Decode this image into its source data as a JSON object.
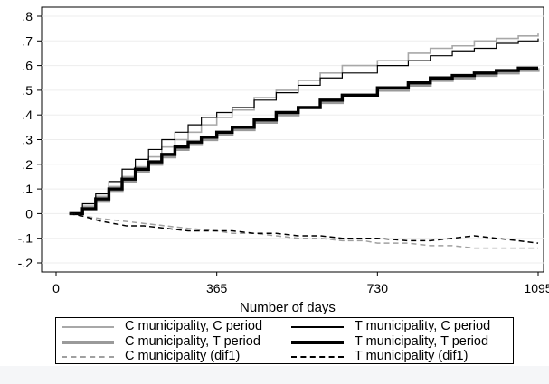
{
  "chart_data": {
    "type": "line",
    "title": "",
    "xlabel": "Number of days",
    "ylabel": "",
    "xlim": [
      0,
      1095
    ],
    "ylim": [
      -0.2,
      0.8
    ],
    "x_ticks": [
      0,
      365,
      730,
      1095
    ],
    "x_tick_labels": [
      "0",
      "365",
      "730",
      "1095"
    ],
    "y_ticks": [
      -0.2,
      -0.1,
      0,
      0.1,
      0.2,
      0.3,
      0.4,
      0.5,
      0.6,
      0.7,
      0.8
    ],
    "y_tick_labels": [
      "-.2",
      "-.1",
      "0",
      ".1",
      ".2",
      ".3",
      ".4",
      ".5",
      ".6",
      ".7",
      ".8"
    ],
    "grid": "horizontal",
    "legend_position": "bottom",
    "series": [
      {
        "name": "C municipality, C period",
        "color": "#a8a8a8",
        "width": 1.6,
        "dash": "",
        "step": true,
        "x": [
          30,
          60,
          90,
          120,
          150,
          180,
          210,
          240,
          270,
          300,
          330,
          365,
          400,
          450,
          500,
          550,
          600,
          650,
          730,
          800,
          850,
          900,
          950,
          1000,
          1050,
          1095
        ],
        "y": [
          0,
          0.03,
          0.07,
          0.11,
          0.15,
          0.19,
          0.23,
          0.27,
          0.3,
          0.33,
          0.36,
          0.39,
          0.42,
          0.47,
          0.5,
          0.54,
          0.57,
          0.6,
          0.62,
          0.65,
          0.67,
          0.68,
          0.7,
          0.71,
          0.72,
          0.73
        ]
      },
      {
        "name": "T municipality, C period",
        "color": "#000000",
        "width": 1.2,
        "dash": "",
        "step": true,
        "x": [
          30,
          60,
          90,
          120,
          150,
          180,
          210,
          240,
          270,
          300,
          330,
          365,
          400,
          450,
          500,
          550,
          600,
          650,
          730,
          800,
          850,
          900,
          950,
          1000,
          1050,
          1095
        ],
        "y": [
          0,
          0.04,
          0.08,
          0.13,
          0.18,
          0.22,
          0.26,
          0.3,
          0.33,
          0.36,
          0.39,
          0.41,
          0.43,
          0.46,
          0.49,
          0.52,
          0.55,
          0.57,
          0.6,
          0.62,
          0.64,
          0.66,
          0.67,
          0.69,
          0.7,
          0.71
        ]
      },
      {
        "name": "C municipality, T period",
        "color": "#9a9a9a",
        "width": 3.2,
        "dash": "",
        "step": true,
        "x": [
          30,
          60,
          90,
          120,
          150,
          180,
          210,
          240,
          270,
          300,
          330,
          365,
          400,
          450,
          500,
          550,
          600,
          650,
          730,
          800,
          850,
          900,
          950,
          1000,
          1050,
          1095
        ],
        "y": [
          0,
          0.02,
          0.05,
          0.09,
          0.13,
          0.17,
          0.2,
          0.23,
          0.26,
          0.28,
          0.3,
          0.32,
          0.34,
          0.37,
          0.4,
          0.43,
          0.45,
          0.48,
          0.5,
          0.52,
          0.54,
          0.55,
          0.56,
          0.57,
          0.58,
          0.59
        ]
      },
      {
        "name": "T municipality, T period",
        "color": "#000000",
        "width": 3.4,
        "dash": "",
        "step": true,
        "x": [
          30,
          60,
          90,
          120,
          150,
          180,
          210,
          240,
          270,
          300,
          330,
          365,
          400,
          450,
          500,
          550,
          600,
          650,
          730,
          800,
          850,
          900,
          950,
          1000,
          1050,
          1095
        ],
        "y": [
          0,
          0.02,
          0.06,
          0.1,
          0.14,
          0.18,
          0.21,
          0.24,
          0.27,
          0.29,
          0.31,
          0.33,
          0.35,
          0.38,
          0.41,
          0.43,
          0.46,
          0.48,
          0.51,
          0.53,
          0.55,
          0.56,
          0.57,
          0.58,
          0.59,
          0.59
        ]
      },
      {
        "name": "C municipality (dif1)",
        "color": "#a0a0a0",
        "width": 1.5,
        "dash": "6 4",
        "step": false,
        "x": [
          30,
          60,
          100,
          150,
          200,
          250,
          300,
          365,
          400,
          450,
          500,
          550,
          600,
          650,
          700,
          730,
          800,
          850,
          900,
          950,
          1000,
          1050,
          1095
        ],
        "y": [
          0,
          -0.01,
          -0.02,
          -0.03,
          -0.04,
          -0.05,
          -0.06,
          -0.07,
          -0.08,
          -0.08,
          -0.09,
          -0.1,
          -0.1,
          -0.11,
          -0.11,
          -0.12,
          -0.12,
          -0.13,
          -0.13,
          -0.14,
          -0.14,
          -0.14,
          -0.14
        ]
      },
      {
        "name": "T municipality (dif1)",
        "color": "#000000",
        "width": 1.5,
        "dash": "6 4",
        "step": false,
        "x": [
          30,
          60,
          100,
          130,
          160,
          200,
          250,
          300,
          350,
          365,
          400,
          450,
          500,
          550,
          600,
          650,
          700,
          730,
          800,
          850,
          900,
          950,
          1000,
          1050,
          1095
        ],
        "y": [
          0,
          -0.01,
          -0.03,
          -0.04,
          -0.05,
          -0.05,
          -0.06,
          -0.07,
          -0.07,
          -0.07,
          -0.07,
          -0.08,
          -0.08,
          -0.09,
          -0.09,
          -0.1,
          -0.1,
          -0.1,
          -0.11,
          -0.11,
          -0.1,
          -0.09,
          -0.1,
          -0.11,
          -0.12
        ]
      }
    ]
  },
  "legend": {
    "items": [
      {
        "label": "C municipality, C period"
      },
      {
        "label": "T municipality, C period"
      },
      {
        "label": "C municipality, T period"
      },
      {
        "label": "T municipality, T period"
      },
      {
        "label": "C municipality (dif1)"
      },
      {
        "label": "T municipality (dif1)"
      }
    ]
  }
}
